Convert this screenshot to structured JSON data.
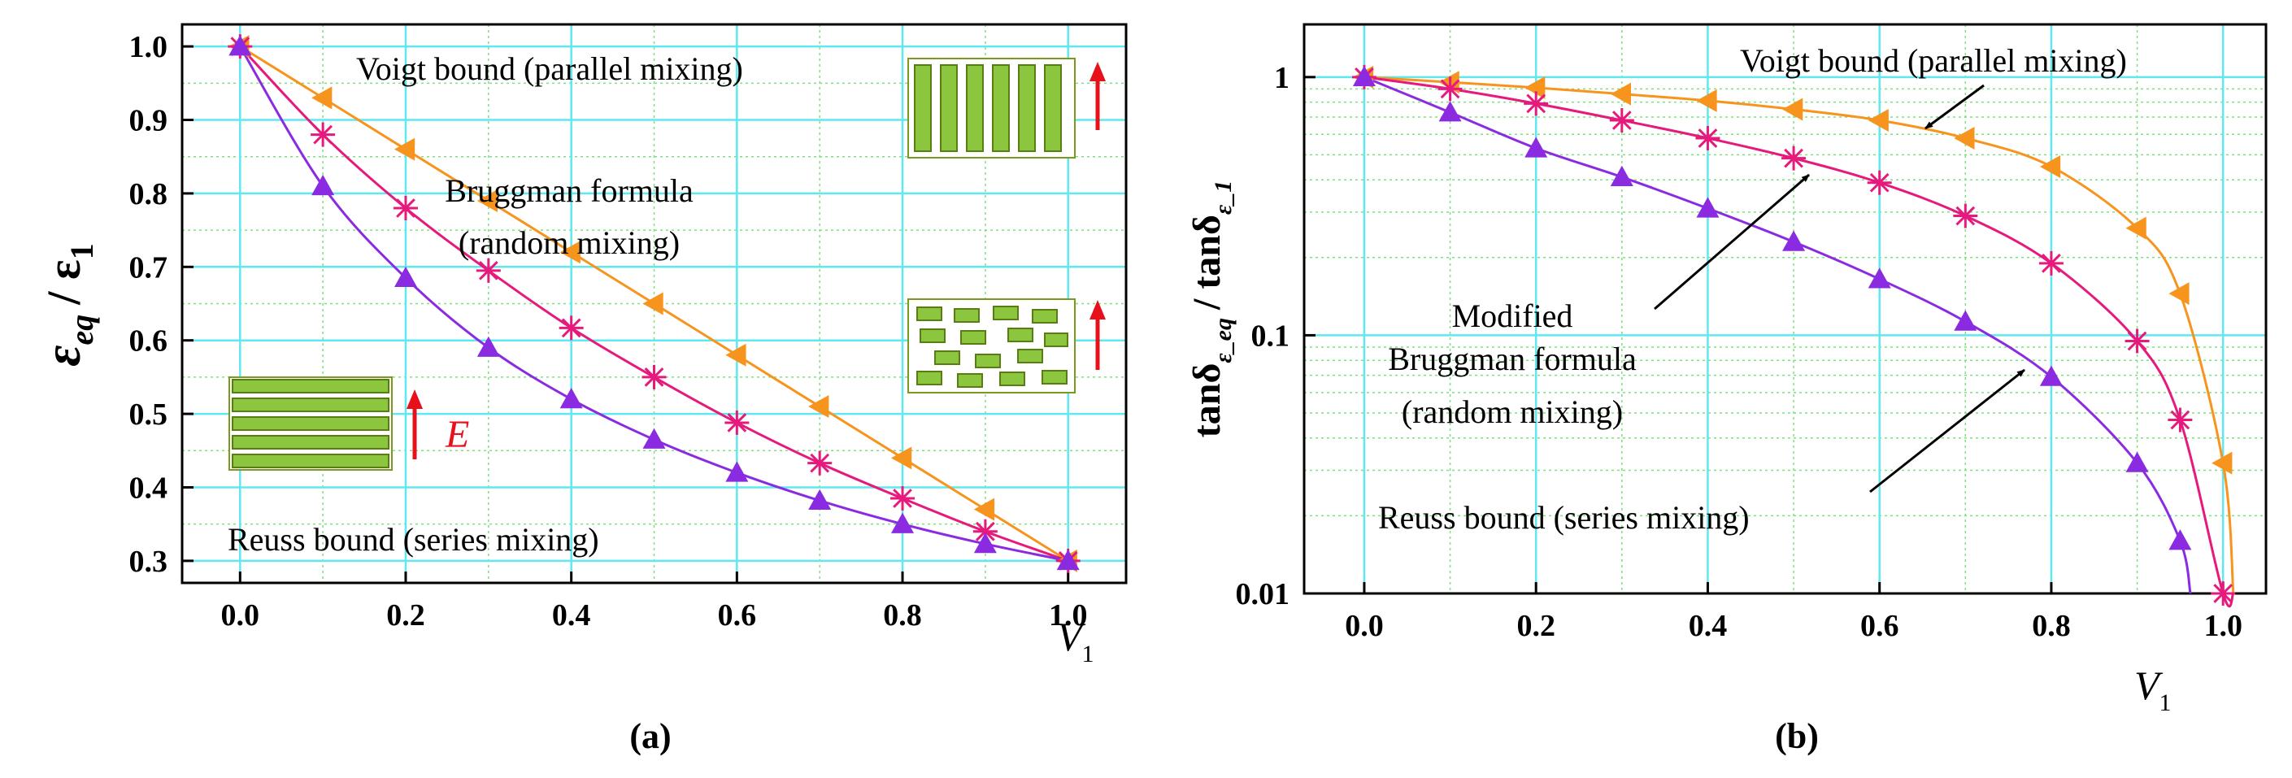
{
  "chart_data": [
    {
      "panel": "a",
      "type": "line",
      "caption": "(a)",
      "scale": "linear",
      "xlabel": "V",
      "xlabel_sub": "1",
      "ylabel_main": "ε",
      "ylabel_sub": "eq",
      "ylabel_den": "/ ε",
      "ylabel_den_sub": "1",
      "xlim": [
        -0.07,
        1.07
      ],
      "ylim": [
        0.27,
        1.03
      ],
      "xticks": [
        "0.0",
        "0.2",
        "0.4",
        "0.6",
        "0.8",
        "1.0"
      ],
      "yticks": [
        "0.3",
        "0.4",
        "0.5",
        "0.6",
        "0.7",
        "0.8",
        "0.9",
        "1.0"
      ],
      "grid": true,
      "x": [
        0.0,
        0.1,
        0.2,
        0.3,
        0.4,
        0.5,
        0.6,
        0.7,
        0.8,
        0.9,
        1.0
      ],
      "series": [
        {
          "name": "Voigt bound (parallel mixing)",
          "color": "#f7941d",
          "marker": "triangle-left",
          "values": [
            1.0,
            0.93,
            0.86,
            0.79,
            0.72,
            0.65,
            0.58,
            0.51,
            0.44,
            0.37,
            0.3
          ]
        },
        {
          "name": "Bruggman formula (random mixing)",
          "color": "#e6197c",
          "marker": "asterisk",
          "values": [
            1.0,
            0.88,
            0.78,
            0.695,
            0.617,
            0.55,
            0.488,
            0.433,
            0.385,
            0.34,
            0.3
          ]
        },
        {
          "name": "Reuss bound (series mixing)",
          "color": "#8a2be2",
          "marker": "triangle-up",
          "values": [
            1.0,
            0.81,
            0.685,
            0.59,
            0.52,
            0.465,
            0.42,
            0.382,
            0.35,
            0.323,
            0.3
          ]
        }
      ],
      "annotations": {
        "voigt": "Voigt bound (parallel mixing)",
        "brugg1": "Bruggman formula",
        "brugg2": "(random mixing)",
        "reuss": "Reuss bound (series mixing)",
        "field": "E"
      }
    },
    {
      "panel": "b",
      "type": "line",
      "caption": "(b)",
      "scale": "log",
      "xlabel": "V",
      "xlabel_sub": "1",
      "ylabel_main": "tanδ",
      "ylabel_sub": "ε_eq",
      "ylabel_den": "/ tanδ",
      "ylabel_den_sub": "ε_1",
      "xlim": [
        -0.07,
        1.05
      ],
      "ylim": [
        0.01,
        1.6
      ],
      "xticks": [
        "0.0",
        "0.2",
        "0.4",
        "0.6",
        "0.8",
        "1.0"
      ],
      "yticks": [
        "1",
        "0.1",
        "0.01"
      ],
      "grid": true,
      "series": [
        {
          "name": "Voigt bound (parallel mixing)",
          "color": "#f7941d",
          "marker": "triangle-left",
          "x": [
            0.0,
            0.1,
            0.2,
            0.3,
            0.4,
            0.5,
            0.6,
            0.7,
            0.8,
            0.9,
            0.95,
            1.0
          ],
          "values": [
            1.0,
            0.955,
            0.91,
            0.86,
            0.81,
            0.75,
            0.68,
            0.58,
            0.45,
            0.26,
            0.145,
            0.032
          ]
        },
        {
          "name": "Modified Bruggman formula (random mixing)",
          "color": "#e6197c",
          "marker": "asterisk",
          "x": [
            0.0,
            0.1,
            0.2,
            0.3,
            0.4,
            0.5,
            0.6,
            0.7,
            0.8,
            0.9,
            0.95,
            1.0
          ],
          "values": [
            1.0,
            0.9,
            0.79,
            0.68,
            0.58,
            0.485,
            0.39,
            0.29,
            0.19,
            0.095,
            0.047,
            0.01
          ]
        },
        {
          "name": "Reuss bound (series mixing)",
          "color": "#8a2be2",
          "marker": "triangle-up",
          "x": [
            0.0,
            0.1,
            0.2,
            0.3,
            0.4,
            0.5,
            0.6,
            0.7,
            0.8,
            0.9,
            0.95
          ],
          "values": [
            1.0,
            0.73,
            0.53,
            0.41,
            0.31,
            0.23,
            0.165,
            0.113,
            0.069,
            0.032,
            0.016
          ]
        }
      ],
      "annotations": {
        "voigt": "Voigt bound (parallel mixing)",
        "mod1": "Modified",
        "mod2": "Bruggman formula",
        "mod3": "(random mixing)",
        "reuss": "Reuss bound (series mixing)"
      }
    }
  ]
}
